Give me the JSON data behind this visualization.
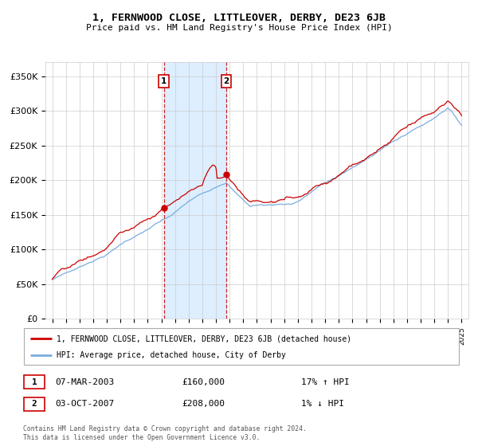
{
  "title": "1, FERNWOOD CLOSE, LITTLEOVER, DERBY, DE23 6JB",
  "subtitle": "Price paid vs. HM Land Registry's House Price Index (HPI)",
  "legend_line1": "1, FERNWOOD CLOSE, LITTLEOVER, DERBY, DE23 6JB (detached house)",
  "legend_line2": "HPI: Average price, detached house, City of Derby",
  "sale1_date": "07-MAR-2003",
  "sale1_price": 160000,
  "sale1_pct": "17% ↑ HPI",
  "sale2_date": "03-OCT-2007",
  "sale2_price": 208000,
  "sale2_pct": "1% ↓ HPI",
  "copyright": "Contains HM Land Registry data © Crown copyright and database right 2024.\nThis data is licensed under the Open Government Licence v3.0.",
  "red_color": "#cc0000",
  "blue_color": "#7aade0",
  "shade_color": "#ddeeff",
  "grid_color": "#cccccc",
  "ylim": [
    0,
    370000
  ],
  "yticks": [
    0,
    50000,
    100000,
    150000,
    200000,
    250000,
    300000,
    350000
  ],
  "ytick_labels": [
    "£0",
    "£50K",
    "£100K",
    "£150K",
    "£200K",
    "£250K",
    "£300K",
    "£350K"
  ],
  "sale1_year": 2003.18,
  "sale2_year": 2007.75,
  "xmin": 1994.5,
  "xmax": 2025.5
}
